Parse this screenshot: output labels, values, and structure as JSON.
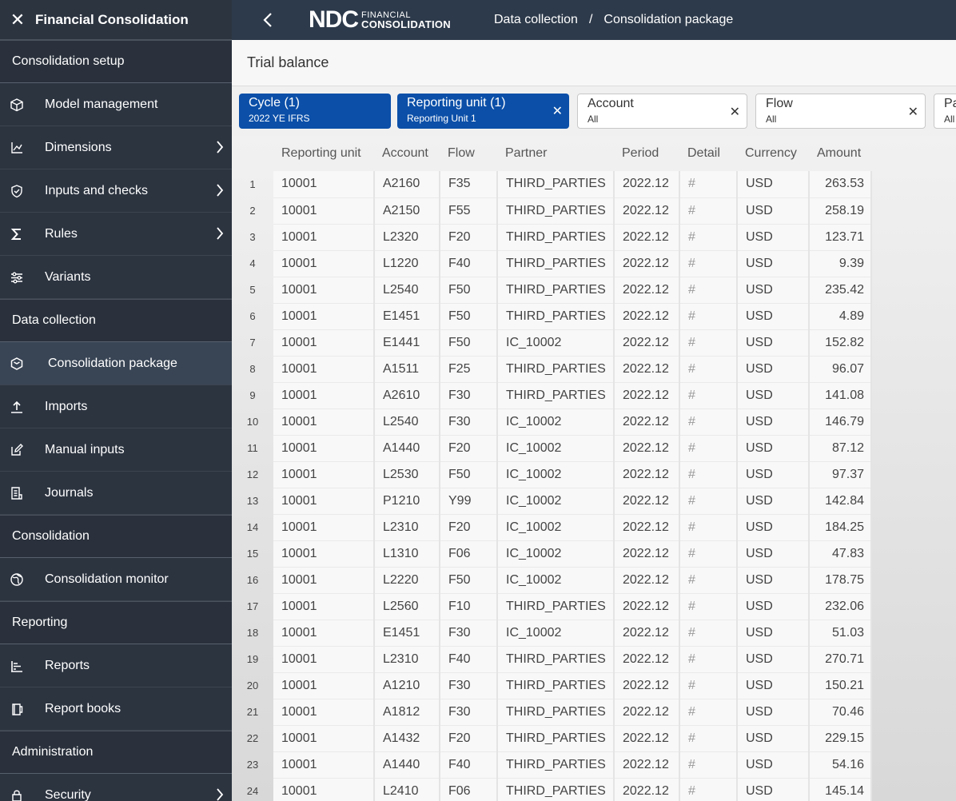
{
  "sidebar": {
    "title": "Financial Consolidation",
    "sections": [
      {
        "label": "Consolidation setup",
        "items": [
          {
            "label": "Model management",
            "icon": "cube-icon",
            "chevron": false
          },
          {
            "label": "Dimensions",
            "icon": "axis-icon",
            "chevron": true
          },
          {
            "label": "Inputs and checks",
            "icon": "shield-check-icon",
            "chevron": true
          },
          {
            "label": "Rules",
            "icon": "sigma-icon",
            "chevron": true
          },
          {
            "label": "Variants",
            "icon": "sliders-icon",
            "chevron": false
          }
        ]
      },
      {
        "label": "Data collection",
        "items": [
          {
            "label": "Consolidation package",
            "icon": "package-icon",
            "chevron": false,
            "active": true
          },
          {
            "label": "Imports",
            "icon": "upload-icon",
            "chevron": false
          },
          {
            "label": "Manual inputs",
            "icon": "edit-icon",
            "chevron": false
          },
          {
            "label": "Journals",
            "icon": "journal-icon",
            "chevron": false
          }
        ]
      },
      {
        "label": "Consolidation",
        "items": [
          {
            "label": "Consolidation monitor",
            "icon": "monitor-globe-icon",
            "chevron": false
          }
        ]
      },
      {
        "label": "Reporting",
        "items": [
          {
            "label": "Reports",
            "icon": "report-icon",
            "chevron": false
          },
          {
            "label": "Report books",
            "icon": "book-icon",
            "chevron": false
          }
        ]
      },
      {
        "label": "Administration",
        "items": [
          {
            "label": "Security",
            "icon": "lock-icon",
            "chevron": true
          }
        ]
      }
    ]
  },
  "topbar": {
    "logo_main": "NDC",
    "logo_line1": "FINANCIAL",
    "logo_line2": "CONSOLIDATION",
    "breadcrumb": [
      "Data collection",
      "/",
      "Consolidation package"
    ]
  },
  "page_title": "Trial balance",
  "filters": [
    {
      "label": "Cycle (1)",
      "value": "2022 YE IFRS",
      "selected": true,
      "closable": false
    },
    {
      "label": "Reporting unit (1)",
      "value": "Reporting Unit 1",
      "selected": true,
      "closable": true
    },
    {
      "label": "Account",
      "value": "All",
      "selected": false,
      "closable": true
    },
    {
      "label": "Flow",
      "value": "All",
      "selected": false,
      "closable": true
    },
    {
      "label": "Pa",
      "value": "All",
      "selected": false,
      "closable": false
    }
  ],
  "table": {
    "columns": [
      "Reporting unit",
      "Account",
      "Flow",
      "Partner",
      "Period",
      "Detail",
      "Currency",
      "Amount"
    ],
    "rows": [
      [
        "1",
        "10001",
        "A2160",
        "F35",
        "THIRD_PARTIES",
        "2022.12",
        "#",
        "USD",
        "263.53"
      ],
      [
        "2",
        "10001",
        "A2150",
        "F55",
        "THIRD_PARTIES",
        "2022.12",
        "#",
        "USD",
        "258.19"
      ],
      [
        "3",
        "10001",
        "L2320",
        "F20",
        "THIRD_PARTIES",
        "2022.12",
        "#",
        "USD",
        "123.71"
      ],
      [
        "4",
        "10001",
        "L1220",
        "F40",
        "THIRD_PARTIES",
        "2022.12",
        "#",
        "USD",
        "9.39"
      ],
      [
        "5",
        "10001",
        "L2540",
        "F50",
        "THIRD_PARTIES",
        "2022.12",
        "#",
        "USD",
        "235.42"
      ],
      [
        "6",
        "10001",
        "E1451",
        "F50",
        "THIRD_PARTIES",
        "2022.12",
        "#",
        "USD",
        "4.89"
      ],
      [
        "7",
        "10001",
        "E1441",
        "F50",
        "IC_10002",
        "2022.12",
        "#",
        "USD",
        "152.82"
      ],
      [
        "8",
        "10001",
        "A1511",
        "F25",
        "THIRD_PARTIES",
        "2022.12",
        "#",
        "USD",
        "96.07"
      ],
      [
        "9",
        "10001",
        "A2610",
        "F30",
        "THIRD_PARTIES",
        "2022.12",
        "#",
        "USD",
        "141.08"
      ],
      [
        "10",
        "10001",
        "L2540",
        "F30",
        "IC_10002",
        "2022.12",
        "#",
        "USD",
        "146.79"
      ],
      [
        "11",
        "10001",
        "A1440",
        "F20",
        "IC_10002",
        "2022.12",
        "#",
        "USD",
        "87.12"
      ],
      [
        "12",
        "10001",
        "L2530",
        "F50",
        "IC_10002",
        "2022.12",
        "#",
        "USD",
        "97.37"
      ],
      [
        "13",
        "10001",
        "P1210",
        "Y99",
        "IC_10002",
        "2022.12",
        "#",
        "USD",
        "142.84"
      ],
      [
        "14",
        "10001",
        "L2310",
        "F20",
        "IC_10002",
        "2022.12",
        "#",
        "USD",
        "184.25"
      ],
      [
        "15",
        "10001",
        "L1310",
        "F06",
        "IC_10002",
        "2022.12",
        "#",
        "USD",
        "47.83"
      ],
      [
        "16",
        "10001",
        "L2220",
        "F50",
        "IC_10002",
        "2022.12",
        "#",
        "USD",
        "178.75"
      ],
      [
        "17",
        "10001",
        "L2560",
        "F10",
        "THIRD_PARTIES",
        "2022.12",
        "#",
        "USD",
        "232.06"
      ],
      [
        "18",
        "10001",
        "E1451",
        "F30",
        "IC_10002",
        "2022.12",
        "#",
        "USD",
        "51.03"
      ],
      [
        "19",
        "10001",
        "L2310",
        "F40",
        "THIRD_PARTIES",
        "2022.12",
        "#",
        "USD",
        "270.71"
      ],
      [
        "20",
        "10001",
        "A1210",
        "F30",
        "THIRD_PARTIES",
        "2022.12",
        "#",
        "USD",
        "150.21"
      ],
      [
        "21",
        "10001",
        "A1812",
        "F30",
        "THIRD_PARTIES",
        "2022.12",
        "#",
        "USD",
        "70.46"
      ],
      [
        "22",
        "10001",
        "A1432",
        "F20",
        "THIRD_PARTIES",
        "2022.12",
        "#",
        "USD",
        "229.15"
      ],
      [
        "23",
        "10001",
        "A1440",
        "F40",
        "THIRD_PARTIES",
        "2022.12",
        "#",
        "USD",
        "54.16"
      ],
      [
        "24",
        "10001",
        "L2410",
        "F06",
        "THIRD_PARTIES",
        "2022.12",
        "#",
        "USD",
        "145.14"
      ]
    ]
  },
  "colors": {
    "sidebar_bg": "#2c3440",
    "topbar_bg": "#2d3a4b",
    "chip_selected": "#0b4fa8"
  }
}
